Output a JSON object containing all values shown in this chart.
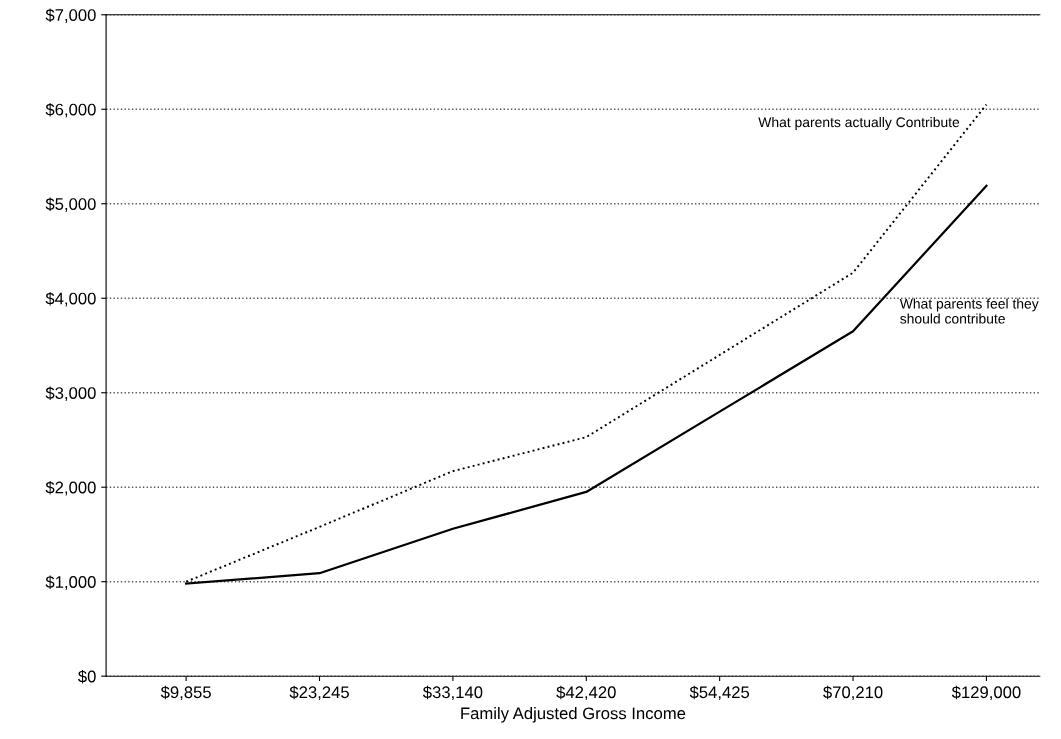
{
  "chart_data": {
    "type": "line",
    "xlabel": "Family Adjusted Gross Income",
    "categories": [
      "$9,855",
      "$23,245",
      "$33,140",
      "$42,420",
      "$54,425",
      "$70,210",
      "$129,000"
    ],
    "series": [
      {
        "name": "What parents actually Contribute",
        "color": "#000000",
        "line_style": "dotted",
        "values": [
          1000,
          1580,
          2170,
          2530,
          3400,
          4270,
          6050
        ]
      },
      {
        "name": "What parents feel they should contribute",
        "color": "#000000",
        "line_style": "solid",
        "values": [
          980,
          1090,
          1560,
          1950,
          2800,
          3650,
          5190
        ]
      }
    ],
    "ylim": [
      0,
      7000
    ],
    "yticks": [
      {
        "value": 0,
        "label": "$0"
      },
      {
        "value": 1000,
        "label": "$1,000"
      },
      {
        "value": 2000,
        "label": "$2,000"
      },
      {
        "value": 3000,
        "label": "$3,000"
      },
      {
        "value": 4000,
        "label": "$4,000"
      },
      {
        "value": 5000,
        "label": "$5,000"
      },
      {
        "value": 6000,
        "label": "$6,000"
      },
      {
        "value": 7000,
        "label": "$7,000"
      }
    ],
    "grid": "y",
    "legend": false,
    "marker": "none"
  }
}
